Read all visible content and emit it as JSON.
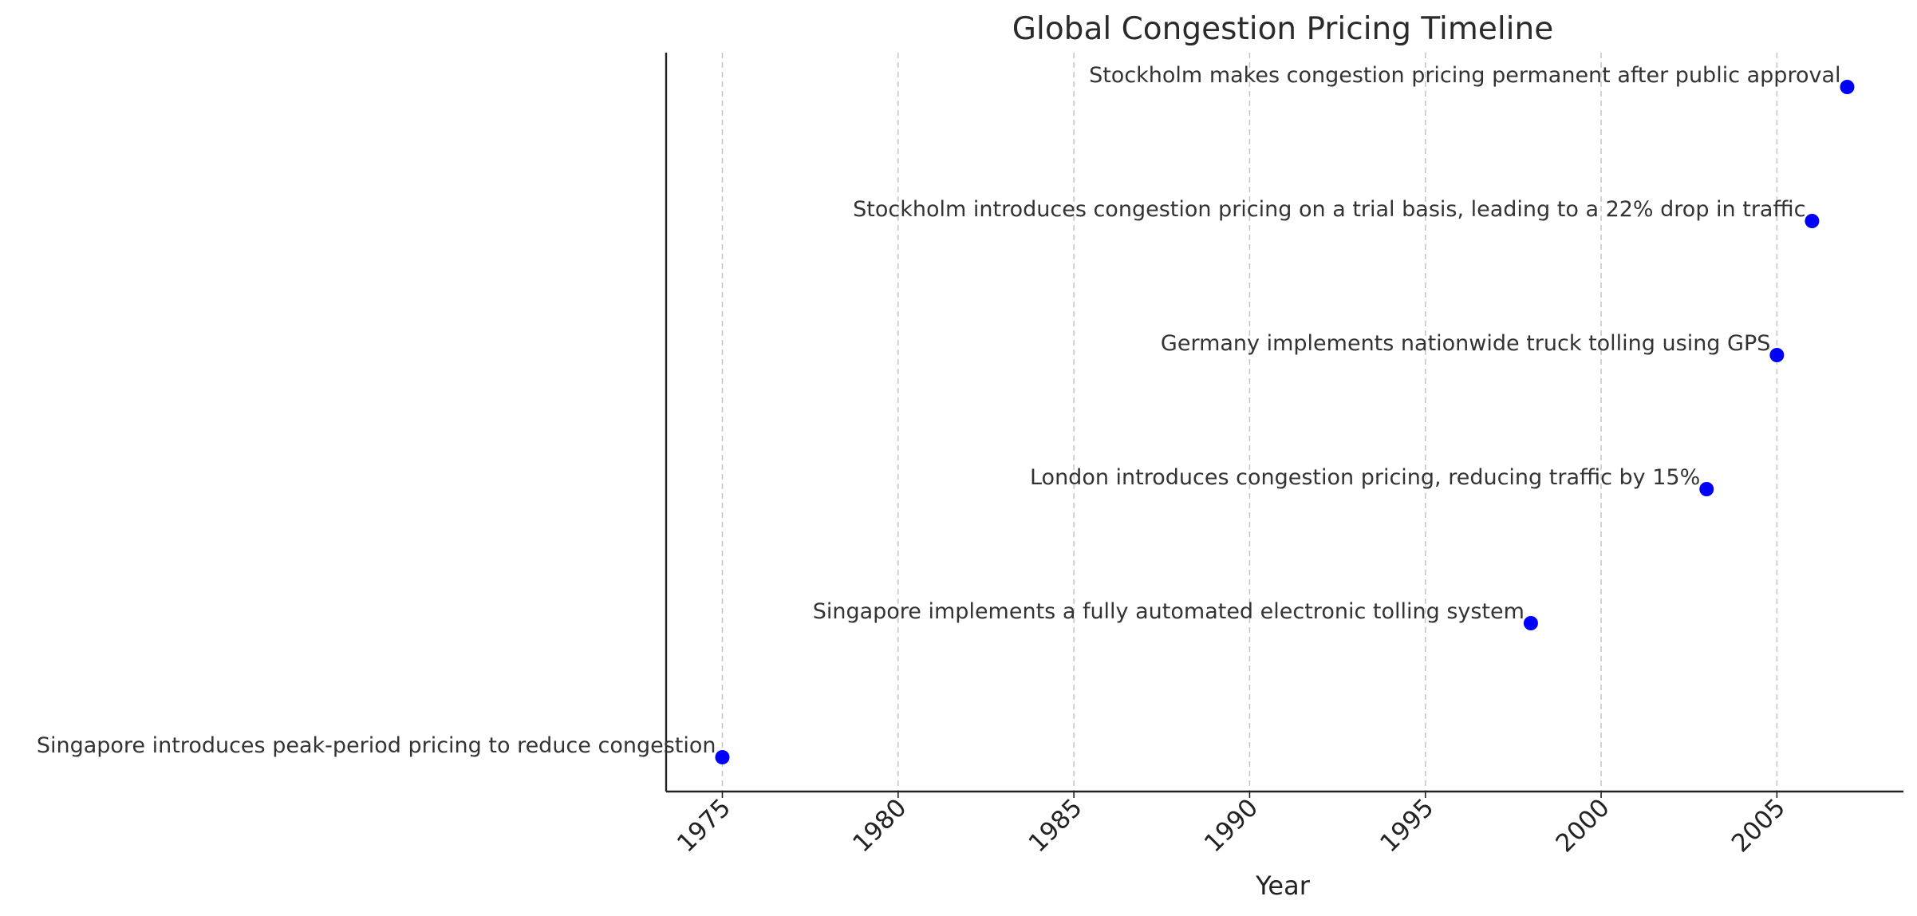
{
  "chart_data": {
    "type": "scatter",
    "title": "Global Congestion Pricing Timeline",
    "xlabel": "Year",
    "ylabel": "",
    "xlim": [
      1973.4,
      2008.6
    ],
    "xticks": [
      1975,
      1980,
      1985,
      1990,
      1995,
      2000,
      2005
    ],
    "grid": "vertical dashed",
    "marker_color": "#0000ff",
    "events": [
      {
        "year": 1975,
        "label": "Singapore introduces peak-period pricing to reduce congestion"
      },
      {
        "year": 1998,
        "label": "Singapore implements a fully automated electronic tolling system"
      },
      {
        "year": 2003,
        "label": "London introduces congestion pricing, reducing traffic by 15%"
      },
      {
        "year": 2005,
        "label": "Germany implements nationwide truck tolling using GPS"
      },
      {
        "year": 2006,
        "label": "Stockholm introduces congestion pricing on a trial basis, leading to a 22% drop in traffic"
      },
      {
        "year": 2007,
        "label": "Stockholm makes congestion pricing permanent after public approval"
      }
    ]
  }
}
